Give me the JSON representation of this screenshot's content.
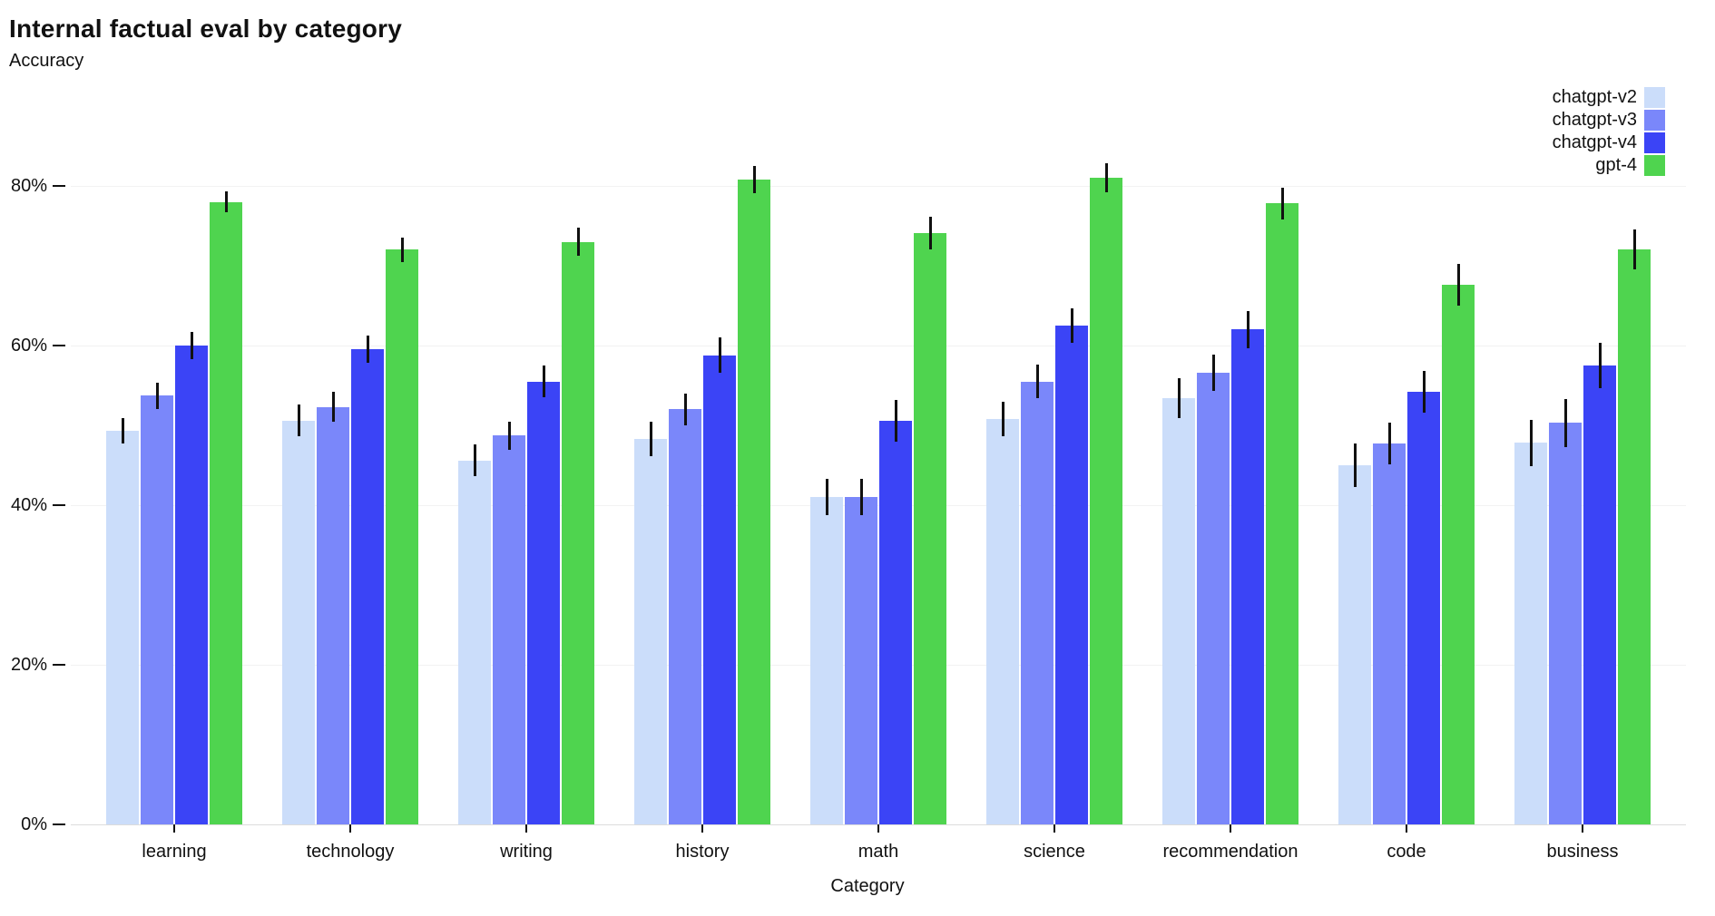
{
  "title": "Internal factual eval by category",
  "subtitle": "Accuracy",
  "xlabel": "Category",
  "chart_data": {
    "type": "bar",
    "title": "Internal factual eval by category",
    "ylabel": "Accuracy",
    "xlabel": "Category",
    "grid": true,
    "legend_position": "top-right",
    "ylim": [
      0,
      86
    ],
    "ytick_values": [
      0,
      20,
      40,
      60,
      80
    ],
    "ytick_labels": [
      "0%",
      "20%",
      "40%",
      "60%",
      "80%"
    ],
    "error_bar_color": "#111111",
    "categories": [
      "learning",
      "technology",
      "writing",
      "history",
      "math",
      "science",
      "recommendation",
      "code",
      "business"
    ],
    "series": [
      {
        "name": "chatgpt-v2",
        "color": "#cbddfa",
        "values": [
          49.3,
          50.6,
          45.6,
          48.3,
          41.0,
          50.8,
          53.4,
          45.0,
          47.8
        ],
        "errors": [
          1.6,
          2.0,
          2.0,
          2.2,
          2.3,
          2.2,
          2.5,
          2.7,
          2.9
        ]
      },
      {
        "name": "chatgpt-v3",
        "color": "#7a87fa",
        "values": [
          53.7,
          52.3,
          48.7,
          52.0,
          41.0,
          55.5,
          56.6,
          47.7,
          50.3
        ],
        "errors": [
          1.6,
          1.9,
          1.8,
          2.0,
          2.3,
          2.1,
          2.3,
          2.6,
          3.0
        ]
      },
      {
        "name": "chatgpt-v4",
        "color": "#3b44f6",
        "values": [
          60.0,
          59.5,
          55.5,
          58.8,
          50.6,
          62.5,
          62.0,
          54.2,
          57.5
        ],
        "errors": [
          1.7,
          1.7,
          2.0,
          2.2,
          2.6,
          2.2,
          2.3,
          2.6,
          2.8
        ]
      },
      {
        "name": "gpt-4",
        "color": "#4fd44f",
        "values": [
          78.0,
          72.0,
          73.0,
          80.8,
          74.1,
          81.0,
          77.8,
          67.6,
          72.0
        ],
        "errors": [
          1.3,
          1.5,
          1.8,
          1.7,
          2.0,
          1.8,
          2.0,
          2.6,
          2.5
        ]
      }
    ]
  }
}
